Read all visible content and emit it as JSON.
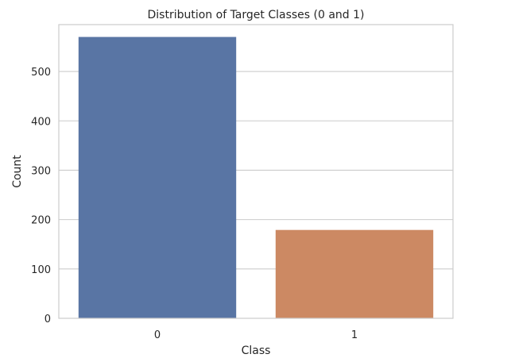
{
  "chart_data": {
    "type": "bar",
    "title": "Distribution of Target Classes (0 and 1)",
    "xlabel": "Class",
    "ylabel": "Count",
    "categories": [
      "0",
      "1"
    ],
    "values": [
      570,
      179
    ],
    "ylim": [
      0,
      595
    ],
    "yticks": [
      0,
      100,
      200,
      300,
      400,
      500
    ],
    "grid": true,
    "bar_colors": [
      "#5975a4",
      "#cc8963"
    ],
    "grid_color": "#cccccc",
    "background": "#ffffff"
  }
}
